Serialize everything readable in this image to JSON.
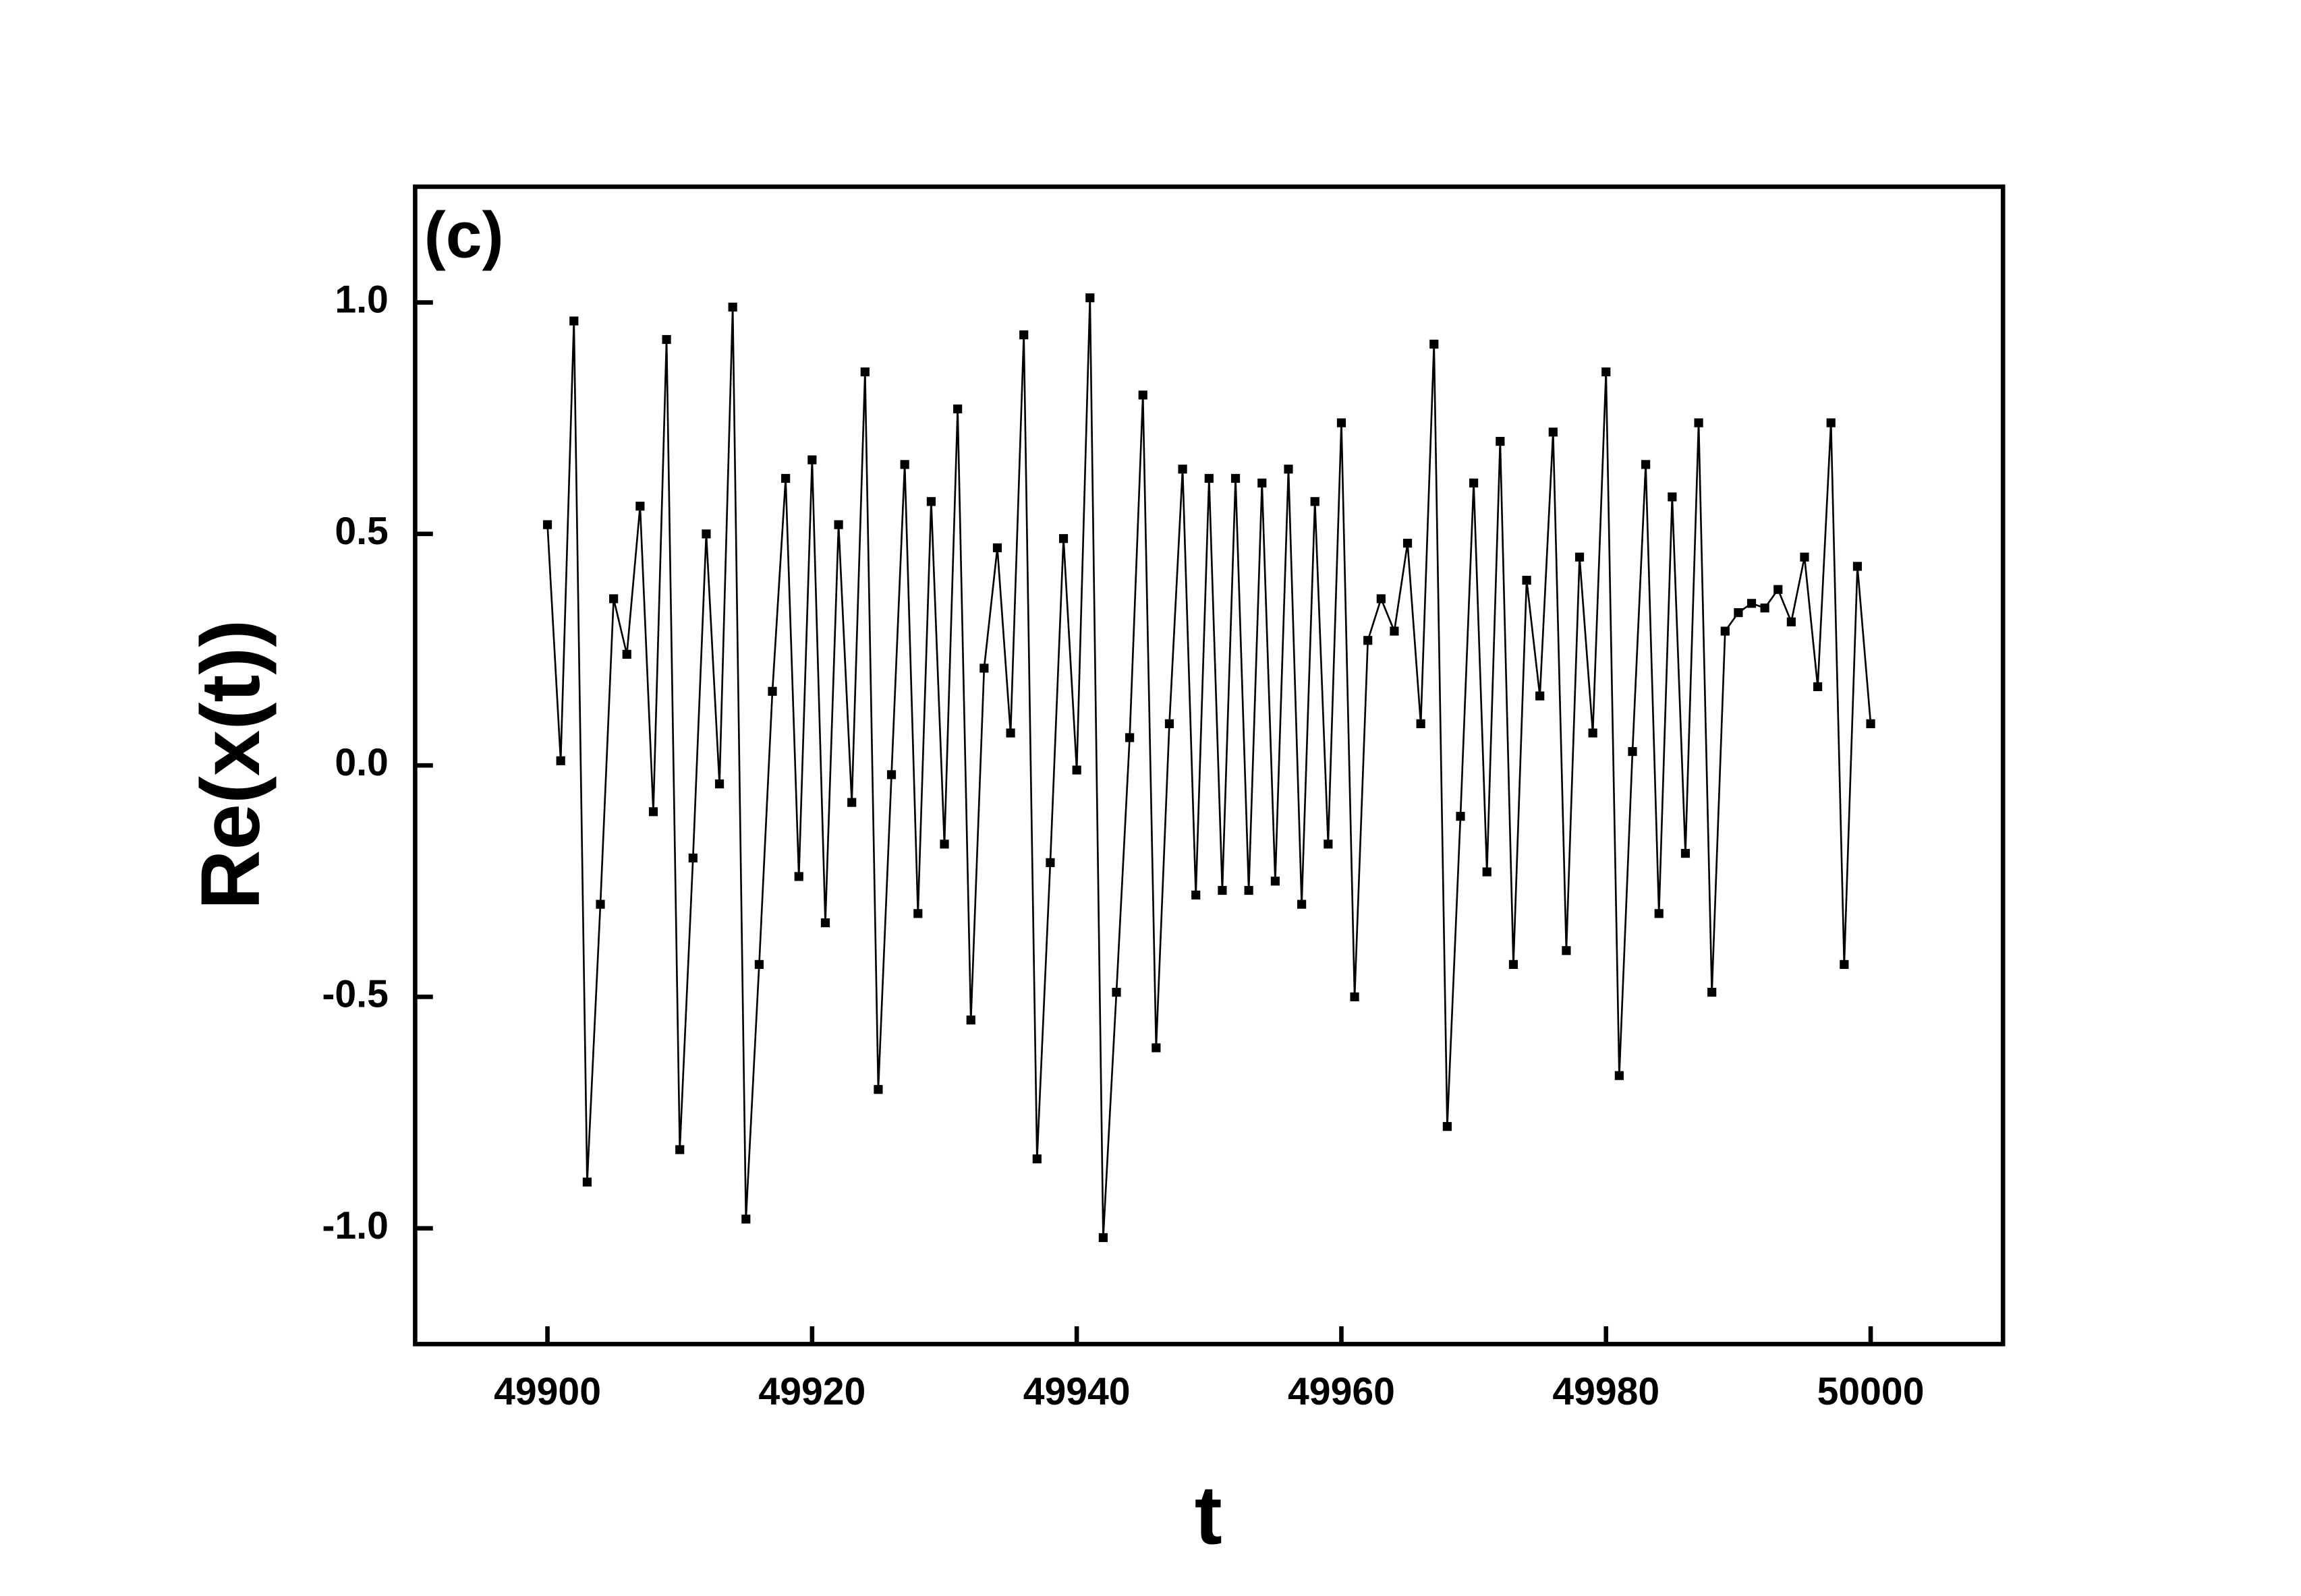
{
  "chart_data": {
    "type": "line",
    "title": "(c)",
    "x_label": "t",
    "y_label": "Re(x(t))",
    "color": "#000000",
    "marker": "square",
    "x": [
      49900,
      49901,
      49902,
      49903,
      49904,
      49905,
      49906,
      49907,
      49908,
      49909,
      49910,
      49911,
      49912,
      49913,
      49914,
      49915,
      49916,
      49917,
      49918,
      49919,
      49920,
      49921,
      49922,
      49923,
      49924,
      49925,
      49926,
      49927,
      49928,
      49929,
      49930,
      49931,
      49932,
      49933,
      49934,
      49935,
      49936,
      49937,
      49938,
      49939,
      49940,
      49941,
      49942,
      49943,
      49944,
      49945,
      49946,
      49947,
      49948,
      49949,
      49950,
      49951,
      49952,
      49953,
      49954,
      49955,
      49956,
      49957,
      49958,
      49959,
      49960,
      49961,
      49962,
      49963,
      49964,
      49965,
      49966,
      49967,
      49968,
      49969,
      49970,
      49971,
      49972,
      49973,
      49974,
      49975,
      49976,
      49977,
      49978,
      49979,
      49980,
      49981,
      49982,
      49983,
      49984,
      49985,
      49986,
      49987,
      49988,
      49989,
      49990,
      49991,
      49992,
      49993,
      49994,
      49995,
      49996,
      49997,
      49998,
      49999,
      50000
    ],
    "values": [
      0.52,
      0.01,
      0.96,
      -0.9,
      -0.3,
      0.36,
      0.24,
      0.56,
      -0.1,
      0.92,
      -0.83,
      -0.2,
      0.5,
      -0.04,
      0.99,
      -0.98,
      -0.43,
      0.16,
      0.62,
      -0.24,
      0.66,
      -0.34,
      0.52,
      -0.08,
      0.85,
      -0.7,
      -0.02,
      0.65,
      -0.32,
      0.57,
      -0.17,
      0.77,
      -0.55,
      0.21,
      0.47,
      0.07,
      0.93,
      -0.85,
      -0.21,
      0.49,
      -0.01,
      1.01,
      -1.02,
      -0.49,
      0.06,
      0.8,
      -0.61,
      0.09,
      0.64,
      -0.28,
      0.62,
      -0.27,
      0.62,
      -0.27,
      0.61,
      -0.25,
      0.64,
      -0.3,
      0.57,
      -0.17,
      0.74,
      -0.5,
      0.27,
      0.36,
      0.29,
      0.48,
      0.09,
      0.91,
      -0.78,
      -0.11,
      0.61,
      -0.23,
      0.7,
      -0.43,
      0.4,
      0.15,
      0.72,
      -0.4,
      0.45,
      0.07,
      0.85,
      -0.67,
      0.03,
      0.65,
      -0.32,
      0.58,
      -0.19,
      0.74,
      -0.49,
      0.29,
      0.33,
      0.35,
      0.34,
      0.38,
      0.31,
      0.45,
      0.17,
      0.74,
      -0.43,
      0.43,
      0.09
    ],
    "xlim": [
      49890,
      50010
    ],
    "xticks": [
      49900,
      49920,
      49940,
      49960,
      49980,
      50000
    ],
    "ylim": [
      -1.25,
      1.25
    ],
    "yticks": [
      {
        "value": -1,
        "label": "-1.0"
      },
      -0.5,
      {
        "value": 0,
        "label": "0.0"
      },
      0.5,
      {
        "value": 1,
        "label": "1.0"
      }
    ],
    "grid": false
  }
}
